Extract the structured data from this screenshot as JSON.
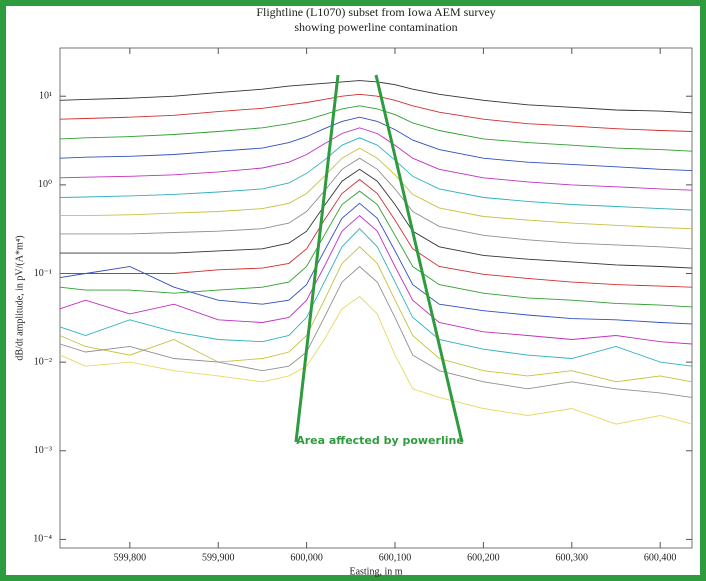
{
  "chart_data": {
    "type": "line",
    "title": "Flightline (L1070) subset from Iowa AEM survey",
    "subtitle": "showing powerline contamination",
    "xlabel": "Easting, in m",
    "ylabel": "dB/dt amplitude, in pV/(A*m⁴)",
    "annotation": "Area affected by powerline",
    "log_y": true,
    "xlim": [
      599721,
      600436
    ],
    "xticks": [
      {
        "value": 599800,
        "label": "599,800"
      },
      {
        "value": 599900,
        "label": "599,900"
      },
      {
        "value": 600000,
        "label": "600,000"
      },
      {
        "value": 600100,
        "label": "600,100"
      },
      {
        "value": 600200,
        "label": "600,200"
      },
      {
        "value": 600300,
        "label": "600,300"
      },
      {
        "value": 600400,
        "label": "600,400"
      }
    ],
    "ylim": [
      8e-05,
      35
    ],
    "yticks": [
      {
        "value": 0.0001,
        "label": "10⁻⁴"
      },
      {
        "value": 0.001,
        "label": "10⁻³"
      },
      {
        "value": 0.01,
        "label": "10⁻²"
      },
      {
        "value": 0.1,
        "label": "10⁻¹"
      },
      {
        "value": 1,
        "label": "10⁰"
      },
      {
        "value": 10,
        "label": "10¹"
      }
    ],
    "x": [
      599721,
      599750,
      599800,
      599850,
      599900,
      599950,
      599980,
      600000,
      600020,
      600040,
      600060,
      600080,
      600100,
      600120,
      600150,
      600200,
      600250,
      600300,
      600350,
      600400,
      600436
    ],
    "series": [
      {
        "color": "#333333",
        "values": [
          9,
          9.2,
          9.5,
          10,
          11,
          12,
          13,
          13.5,
          14,
          14.5,
          15,
          14.5,
          13.5,
          12,
          10.5,
          9,
          8,
          7.5,
          7,
          6.8,
          6.5
        ]
      },
      {
        "color": "#d03030",
        "values": [
          5.5,
          5.6,
          5.8,
          6.1,
          6.7,
          7.3,
          8,
          8.5,
          9.2,
          10,
          10.5,
          10,
          9,
          7.8,
          6.6,
          5.5,
          4.9,
          4.6,
          4.3,
          4.1,
          4
        ]
      },
      {
        "color": "#30a030",
        "values": [
          3.3,
          3.4,
          3.5,
          3.7,
          4,
          4.4,
          4.9,
          5.4,
          6.2,
          7.2,
          7.8,
          7.2,
          6.2,
          5,
          4.1,
          3.3,
          3,
          2.8,
          2.6,
          2.5,
          2.4
        ]
      },
      {
        "color": "#3050c0",
        "values": [
          2,
          2.05,
          2.1,
          2.2,
          2.4,
          2.6,
          3,
          3.5,
          4.3,
          5.2,
          5.8,
          5.2,
          4.2,
          3.2,
          2.5,
          2,
          1.8,
          1.7,
          1.6,
          1.5,
          1.45
        ]
      },
      {
        "color": "#c030c0",
        "values": [
          1.2,
          1.22,
          1.25,
          1.3,
          1.4,
          1.55,
          1.8,
          2.2,
          2.9,
          3.8,
          4.4,
          3.8,
          2.8,
          2,
          1.5,
          1.2,
          1.08,
          1,
          0.95,
          0.9,
          0.87
        ]
      },
      {
        "color": "#30b0c0",
        "values": [
          0.72,
          0.73,
          0.75,
          0.78,
          0.83,
          0.9,
          1.05,
          1.35,
          1.9,
          2.8,
          3.4,
          2.8,
          1.9,
          1.25,
          0.9,
          0.72,
          0.65,
          0.6,
          0.57,
          0.54,
          0.52
        ]
      },
      {
        "color": "#c8c040",
        "values": [
          0.45,
          0.45,
          0.46,
          0.48,
          0.5,
          0.54,
          0.62,
          0.8,
          1.25,
          2,
          2.6,
          2,
          1.3,
          0.78,
          0.55,
          0.44,
          0.4,
          0.37,
          0.35,
          0.33,
          0.32
        ]
      },
      {
        "color": "#909090",
        "values": [
          0.28,
          0.28,
          0.28,
          0.29,
          0.3,
          0.32,
          0.37,
          0.5,
          0.85,
          1.5,
          2,
          1.5,
          0.9,
          0.5,
          0.34,
          0.27,
          0.24,
          0.22,
          0.21,
          0.2,
          0.19
        ]
      },
      {
        "color": "#333333",
        "values": [
          0.17,
          0.17,
          0.17,
          0.17,
          0.18,
          0.19,
          0.22,
          0.3,
          0.58,
          1.1,
          1.5,
          1.1,
          0.6,
          0.3,
          0.2,
          0.16,
          0.145,
          0.135,
          0.125,
          0.12,
          0.115
        ]
      },
      {
        "color": "#d03030",
        "values": [
          0.1,
          0.1,
          0.1,
          0.1,
          0.11,
          0.115,
          0.13,
          0.19,
          0.4,
          0.8,
          1.15,
          0.8,
          0.4,
          0.19,
          0.12,
          0.098,
          0.088,
          0.08,
          0.075,
          0.072,
          0.07
        ]
      },
      {
        "color": "#30a030",
        "values": [
          0.07,
          0.065,
          0.065,
          0.06,
          0.065,
          0.07,
          0.08,
          0.12,
          0.27,
          0.6,
          0.85,
          0.6,
          0.27,
          0.12,
          0.075,
          0.06,
          0.053,
          0.05,
          0.046,
          0.044,
          0.042
        ]
      },
      {
        "color": "#3050c0",
        "values": [
          0.09,
          0.1,
          0.12,
          0.07,
          0.05,
          0.045,
          0.05,
          0.075,
          0.18,
          0.42,
          0.62,
          0.42,
          0.18,
          0.075,
          0.045,
          0.038,
          0.034,
          0.031,
          0.03,
          0.028,
          0.027
        ]
      },
      {
        "color": "#c030c0",
        "values": [
          0.04,
          0.05,
          0.035,
          0.045,
          0.03,
          0.028,
          0.032,
          0.05,
          0.12,
          0.3,
          0.45,
          0.3,
          0.12,
          0.05,
          0.028,
          0.022,
          0.02,
          0.018,
          0.02,
          0.017,
          0.016
        ]
      },
      {
        "color": "#30b0c0",
        "values": [
          0.025,
          0.02,
          0.03,
          0.022,
          0.018,
          0.017,
          0.02,
          0.032,
          0.08,
          0.2,
          0.32,
          0.2,
          0.08,
          0.032,
          0.018,
          0.014,
          0.012,
          0.011,
          0.015,
          0.01,
          0.009
        ]
      },
      {
        "color": "#c8c040",
        "values": [
          0.02,
          0.015,
          0.012,
          0.018,
          0.01,
          0.011,
          0.013,
          0.02,
          0.05,
          0.13,
          0.2,
          0.13,
          0.05,
          0.02,
          0.011,
          0.008,
          0.007,
          0.008,
          0.006,
          0.007,
          0.006
        ]
      },
      {
        "color": "#909090",
        "values": [
          0.016,
          0.013,
          0.015,
          0.011,
          0.01,
          0.008,
          0.009,
          0.013,
          0.032,
          0.08,
          0.12,
          0.08,
          0.032,
          0.012,
          0.008,
          0.006,
          0.005,
          0.006,
          0.005,
          0.0045,
          0.004
        ]
      },
      {
        "color": "#e8d860",
        "values": [
          0.012,
          0.009,
          0.01,
          0.008,
          0.007,
          0.006,
          0.007,
          0.009,
          0.018,
          0.04,
          0.055,
          0.035,
          0.012,
          0.005,
          0.004,
          0.003,
          0.0025,
          0.003,
          0.002,
          0.0025,
          0.002
        ]
      }
    ]
  }
}
